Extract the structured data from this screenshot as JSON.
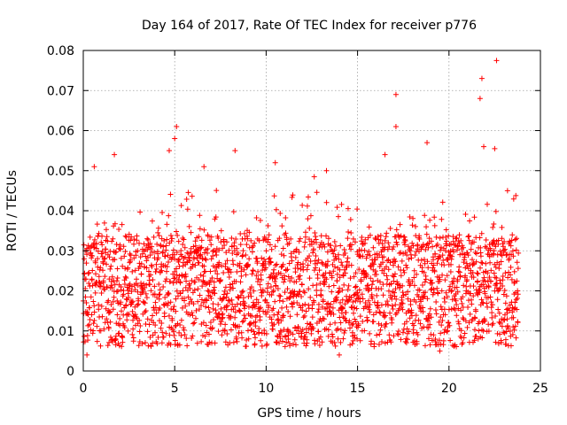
{
  "chart_data": {
    "type": "scatter",
    "title": "Day 164 of 2017, Rate Of TEC Index for receiver p776",
    "xlabel": "GPS time / hours",
    "ylabel": "ROTI / TECUs",
    "xlim": [
      0,
      25
    ],
    "ylim": [
      0,
      0.08
    ],
    "x_ticks": [
      0,
      5,
      10,
      15,
      20,
      25
    ],
    "y_ticks": [
      0,
      0.01,
      0.02,
      0.03,
      0.04,
      0.05,
      0.06,
      0.07,
      0.08
    ],
    "x_tick_labels": [
      "0",
      "5",
      "10",
      "15",
      "20",
      "25"
    ],
    "y_tick_labels": [
      "0",
      "0.01",
      "0.02",
      "0.03",
      "0.04",
      "0.05",
      "0.06",
      "0.07",
      "0.08"
    ],
    "grid": true,
    "marker": "+",
    "series": [
      {
        "name": "ROTI",
        "color": "#ff0000",
        "x_range": [
          0,
          23.8
        ],
        "typical_range": [
          0.008,
          0.035
        ],
        "notable_points": [
          {
            "x": 0.2,
            "y": 0.004
          },
          {
            "x": 0.6,
            "y": 0.051
          },
          {
            "x": 1.7,
            "y": 0.054
          },
          {
            "x": 4.7,
            "y": 0.055
          },
          {
            "x": 5.1,
            "y": 0.061
          },
          {
            "x": 5.0,
            "y": 0.058
          },
          {
            "x": 6.6,
            "y": 0.051
          },
          {
            "x": 8.3,
            "y": 0.055
          },
          {
            "x": 10.5,
            "y": 0.052
          },
          {
            "x": 13.3,
            "y": 0.05
          },
          {
            "x": 16.5,
            "y": 0.054
          },
          {
            "x": 17.1,
            "y": 0.069
          },
          {
            "x": 17.1,
            "y": 0.061
          },
          {
            "x": 18.8,
            "y": 0.057
          },
          {
            "x": 21.8,
            "y": 0.073
          },
          {
            "x": 21.7,
            "y": 0.068
          },
          {
            "x": 21.9,
            "y": 0.056
          },
          {
            "x": 22.6,
            "y": 0.0775
          },
          {
            "x": 22.5,
            "y": 0.0555
          },
          {
            "x": 23.2,
            "y": 0.045
          },
          {
            "x": 14.0,
            "y": 0.004
          },
          {
            "x": 19.5,
            "y": 0.005
          }
        ]
      }
    ]
  }
}
